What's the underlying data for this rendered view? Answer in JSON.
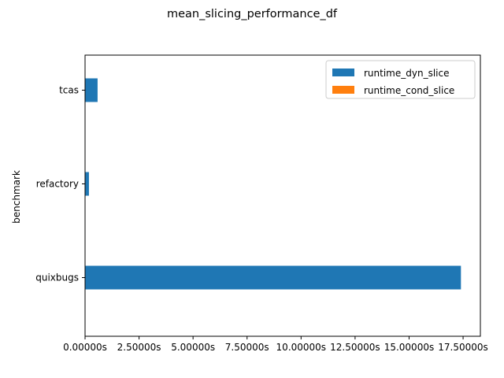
{
  "chart_data": {
    "type": "bar",
    "orientation": "horizontal",
    "title": "mean_slicing_performance_df",
    "xlabel": "",
    "ylabel": "benchmark",
    "categories": [
      "quixbugs",
      "refactory",
      "tcas"
    ],
    "series": [
      {
        "name": "runtime_dyn_slice",
        "color": "#1f77b4",
        "values": [
          17.4,
          0.18,
          0.58
        ]
      },
      {
        "name": "runtime_cond_slice",
        "color": "#ff7f0e",
        "values": [
          0.0,
          0.0,
          0.0
        ]
      }
    ],
    "xlim": [
      0.0,
      18.3
    ],
    "x_ticks": [
      0,
      2.5,
      5,
      7.5,
      10,
      12.5,
      15,
      17.5
    ],
    "x_tick_labels": [
      "0.00000s",
      "2.50000s",
      "5.00000s",
      "7.50000s",
      "10.00000s",
      "12.50000s",
      "15.00000s",
      "17.50000s"
    ],
    "grid": false,
    "legend_position": "top-right"
  }
}
